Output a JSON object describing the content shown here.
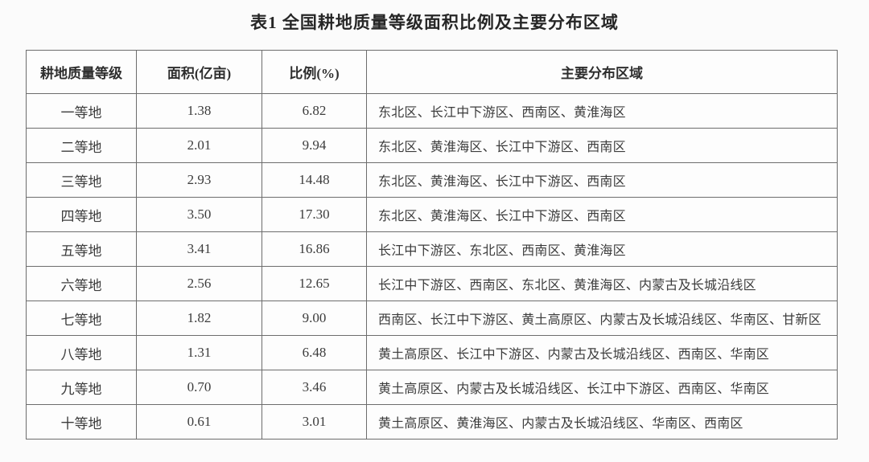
{
  "page": {
    "title": "表1 全国耕地质量等级面积比例及主要分布区域"
  },
  "table": {
    "headers": [
      "耕地质量等级",
      "面积(亿亩)",
      "比例(%)",
      "主要分布区域"
    ],
    "rows": [
      {
        "grade": "一等地",
        "area": "1.38",
        "ratio": "6.82",
        "regions": "东北区、长江中下游区、西南区、黄淮海区"
      },
      {
        "grade": "二等地",
        "area": "2.01",
        "ratio": "9.94",
        "regions": "东北区、黄淮海区、长江中下游区、西南区"
      },
      {
        "grade": "三等地",
        "area": "2.93",
        "ratio": "14.48",
        "regions": "东北区、黄淮海区、长江中下游区、西南区"
      },
      {
        "grade": "四等地",
        "area": "3.50",
        "ratio": "17.30",
        "regions": "东北区、黄淮海区、长江中下游区、西南区"
      },
      {
        "grade": "五等地",
        "area": "3.41",
        "ratio": "16.86",
        "regions": "长江中下游区、东北区、西南区、黄淮海区"
      },
      {
        "grade": "六等地",
        "area": "2.56",
        "ratio": "12.65",
        "regions": "长江中下游区、西南区、东北区、黄淮海区、内蒙古及长城沿线区"
      },
      {
        "grade": "七等地",
        "area": "1.82",
        "ratio": "9.00",
        "regions": "西南区、长江中下游区、黄土高原区、内蒙古及长城沿线区、华南区、甘新区"
      },
      {
        "grade": "八等地",
        "area": "1.31",
        "ratio": "6.48",
        "regions": "黄土高原区、长江中下游区、内蒙古及长城沿线区、西南区、华南区"
      },
      {
        "grade": "九等地",
        "area": "0.70",
        "ratio": "3.46",
        "regions": "黄土高原区、内蒙古及长城沿线区、长江中下游区、西南区、华南区"
      },
      {
        "grade": "十等地",
        "area": "0.61",
        "ratio": "3.01",
        "regions": "黄土高原区、黄淮海区、内蒙古及长城沿线区、华南区、西南区"
      }
    ]
  },
  "colors": {
    "text": "#3c3c3c",
    "border": "#6d6d6d",
    "background": "#fbfbfb",
    "cell_background": "#fdfdfd"
  }
}
